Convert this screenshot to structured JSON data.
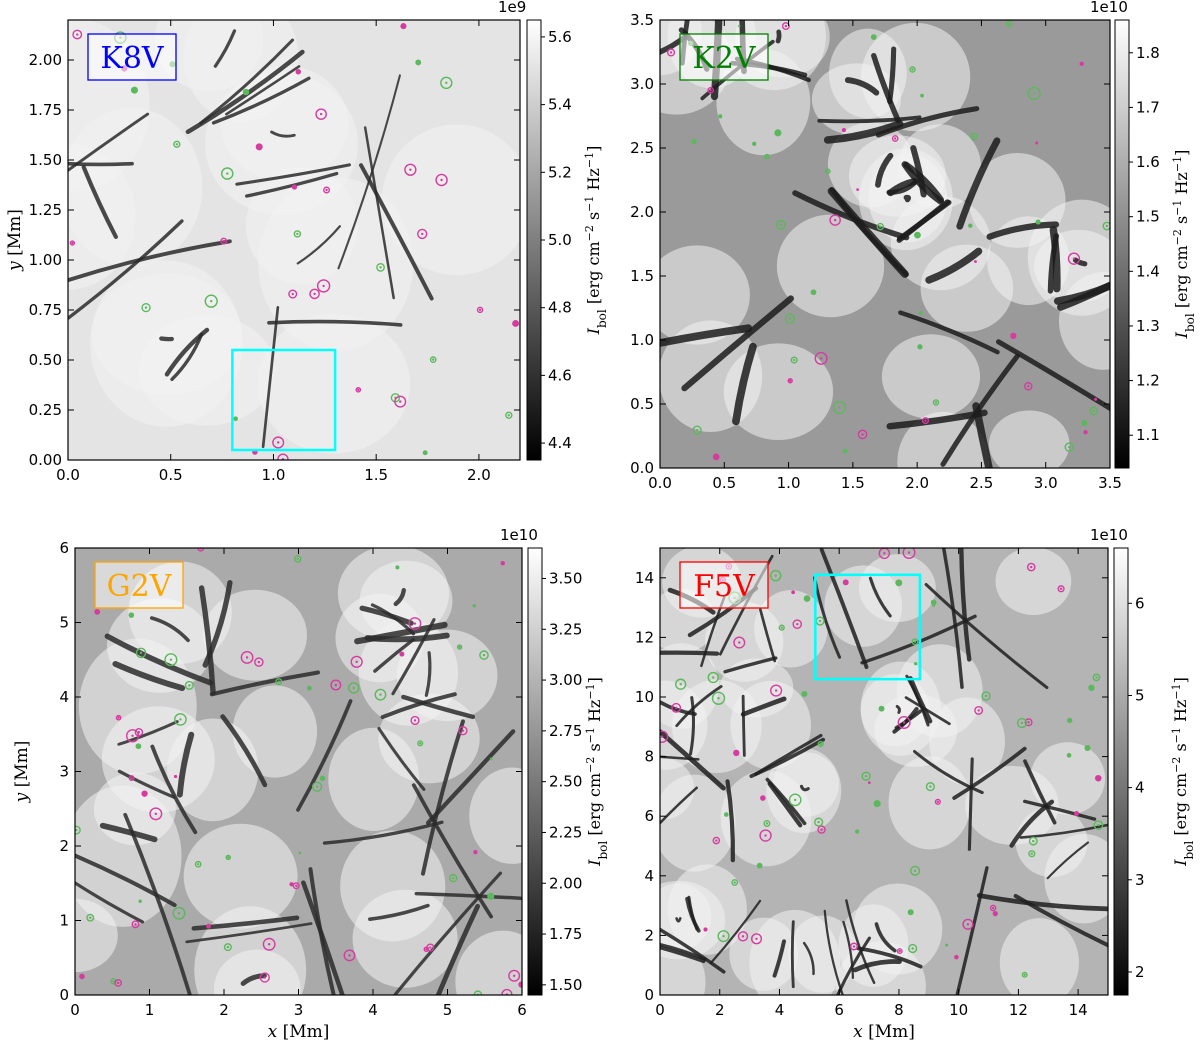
{
  "colors": {
    "K8V": "#0000ff",
    "K2V": "#008000",
    "G2V": "#ffa500",
    "F5V": "#ff0000",
    "roi_box": "#00ffff",
    "marker_magenta": "#d63ca0",
    "marker_green": "#5cb85c"
  },
  "chart_data": [
    {
      "type": "heatmap",
      "panel": "top-left",
      "star_label": "K8V",
      "xlabel": "",
      "ylabel": "y [Mm]",
      "xlim": [
        0,
        2.2
      ],
      "ylim": [
        0,
        2.2
      ],
      "xticks": [
        0.0,
        0.5,
        1.0,
        1.5,
        2.0
      ],
      "xtick_labels": [
        "0.0",
        "0.5",
        "1.0",
        "1.5",
        "2.0"
      ],
      "yticks": [
        0.0,
        0.25,
        0.5,
        0.75,
        1.0,
        1.25,
        1.5,
        1.75,
        2.0
      ],
      "ytick_labels": [
        "0.00",
        "0.25",
        "0.50",
        "0.75",
        "1.00",
        "1.25",
        "1.50",
        "1.75",
        "2.00"
      ],
      "colorbar": {
        "label": "I_bol [erg cm^-2 s^-1 Hz^-1]",
        "offset": "1e9",
        "range": [
          4.35,
          5.65
        ],
        "ticks": [
          4.4,
          4.6,
          4.8,
          5.0,
          5.2,
          5.4,
          5.6
        ],
        "tick_labels": [
          "4.4",
          "4.6",
          "4.8",
          "5.0",
          "5.2",
          "5.4",
          "5.6"
        ]
      },
      "roi_box": {
        "x0": 0.8,
        "x1": 1.3,
        "y0": 0.05,
        "y1": 0.55
      },
      "colormap": "gray",
      "pixel_field": "granulation intensity map"
    },
    {
      "type": "heatmap",
      "panel": "top-right",
      "star_label": "K2V",
      "xlabel": "",
      "ylabel": "",
      "xlim": [
        0,
        3.5
      ],
      "ylim": [
        0,
        3.5
      ],
      "xticks": [
        0.0,
        0.5,
        1.0,
        1.5,
        2.0,
        2.5,
        3.0,
        3.5
      ],
      "xtick_labels": [
        "0.0",
        "0.5",
        "1.0",
        "1.5",
        "2.0",
        "2.5",
        "3.0",
        "3.5"
      ],
      "yticks": [
        0.0,
        0.5,
        1.0,
        1.5,
        2.0,
        2.5,
        3.0,
        3.5
      ],
      "ytick_labels": [
        "0.0",
        "0.5",
        "1.0",
        "1.5",
        "2.0",
        "2.5",
        "3.0",
        "3.5"
      ],
      "colorbar": {
        "label": "I_bol [erg cm^-2 s^-1 Hz^-1]",
        "offset": "1e10",
        "range": [
          1.04,
          1.86
        ],
        "ticks": [
          1.1,
          1.2,
          1.3,
          1.4,
          1.5,
          1.6,
          1.7,
          1.8
        ],
        "tick_labels": [
          "1.1",
          "1.2",
          "1.3",
          "1.4",
          "1.5",
          "1.6",
          "1.7",
          "1.8"
        ]
      },
      "colormap": "gray",
      "pixel_field": "granulation intensity map"
    },
    {
      "type": "heatmap",
      "panel": "bottom-left",
      "star_label": "G2V",
      "xlabel": "x [Mm]",
      "ylabel": "y [Mm]",
      "xlim": [
        0,
        6
      ],
      "ylim": [
        0,
        6
      ],
      "xticks": [
        0,
        1,
        2,
        3,
        4,
        5,
        6
      ],
      "xtick_labels": [
        "0",
        "1",
        "2",
        "3",
        "4",
        "5",
        "6"
      ],
      "yticks": [
        0,
        1,
        2,
        3,
        4,
        5,
        6
      ],
      "ytick_labels": [
        "0",
        "1",
        "2",
        "3",
        "4",
        "5",
        "6"
      ],
      "colorbar": {
        "label": "I_bol [erg cm^-2 s^-1 Hz^-1]",
        "offset": "1e10",
        "range": [
          1.45,
          3.65
        ],
        "ticks": [
          1.5,
          1.75,
          2.0,
          2.25,
          2.5,
          2.75,
          3.0,
          3.25,
          3.5
        ],
        "tick_labels": [
          "1.50",
          "1.75",
          "2.00",
          "2.25",
          "2.50",
          "2.75",
          "3.00",
          "3.25",
          "3.50"
        ]
      },
      "colormap": "gray",
      "pixel_field": "granulation intensity map"
    },
    {
      "type": "heatmap",
      "panel": "bottom-right",
      "star_label": "F5V",
      "xlabel": "x [Mm]",
      "ylabel": "",
      "xlim": [
        0,
        15
      ],
      "ylim": [
        0,
        15
      ],
      "xticks": [
        0,
        2,
        4,
        6,
        8,
        10,
        12,
        14
      ],
      "xtick_labels": [
        "0",
        "2",
        "4",
        "6",
        "8",
        "10",
        "12",
        "14"
      ],
      "yticks": [
        0,
        2,
        4,
        6,
        8,
        10,
        12,
        14
      ],
      "ytick_labels": [
        "0",
        "2",
        "4",
        "6",
        "8",
        "10",
        "12",
        "14"
      ],
      "colorbar": {
        "label": "I_bol [erg cm^-2 s^-1 Hz^-1]",
        "offset": "1e10",
        "range": [
          1.75,
          6.6
        ],
        "ticks": [
          2,
          3,
          4,
          5,
          6
        ],
        "tick_labels": [
          "2",
          "3",
          "4",
          "5",
          "6"
        ]
      },
      "roi_box": {
        "x0": 5.2,
        "x1": 8.7,
        "y0": 10.6,
        "y1": 14.1
      },
      "colormap": "gray",
      "pixel_field": "granulation intensity map"
    }
  ]
}
